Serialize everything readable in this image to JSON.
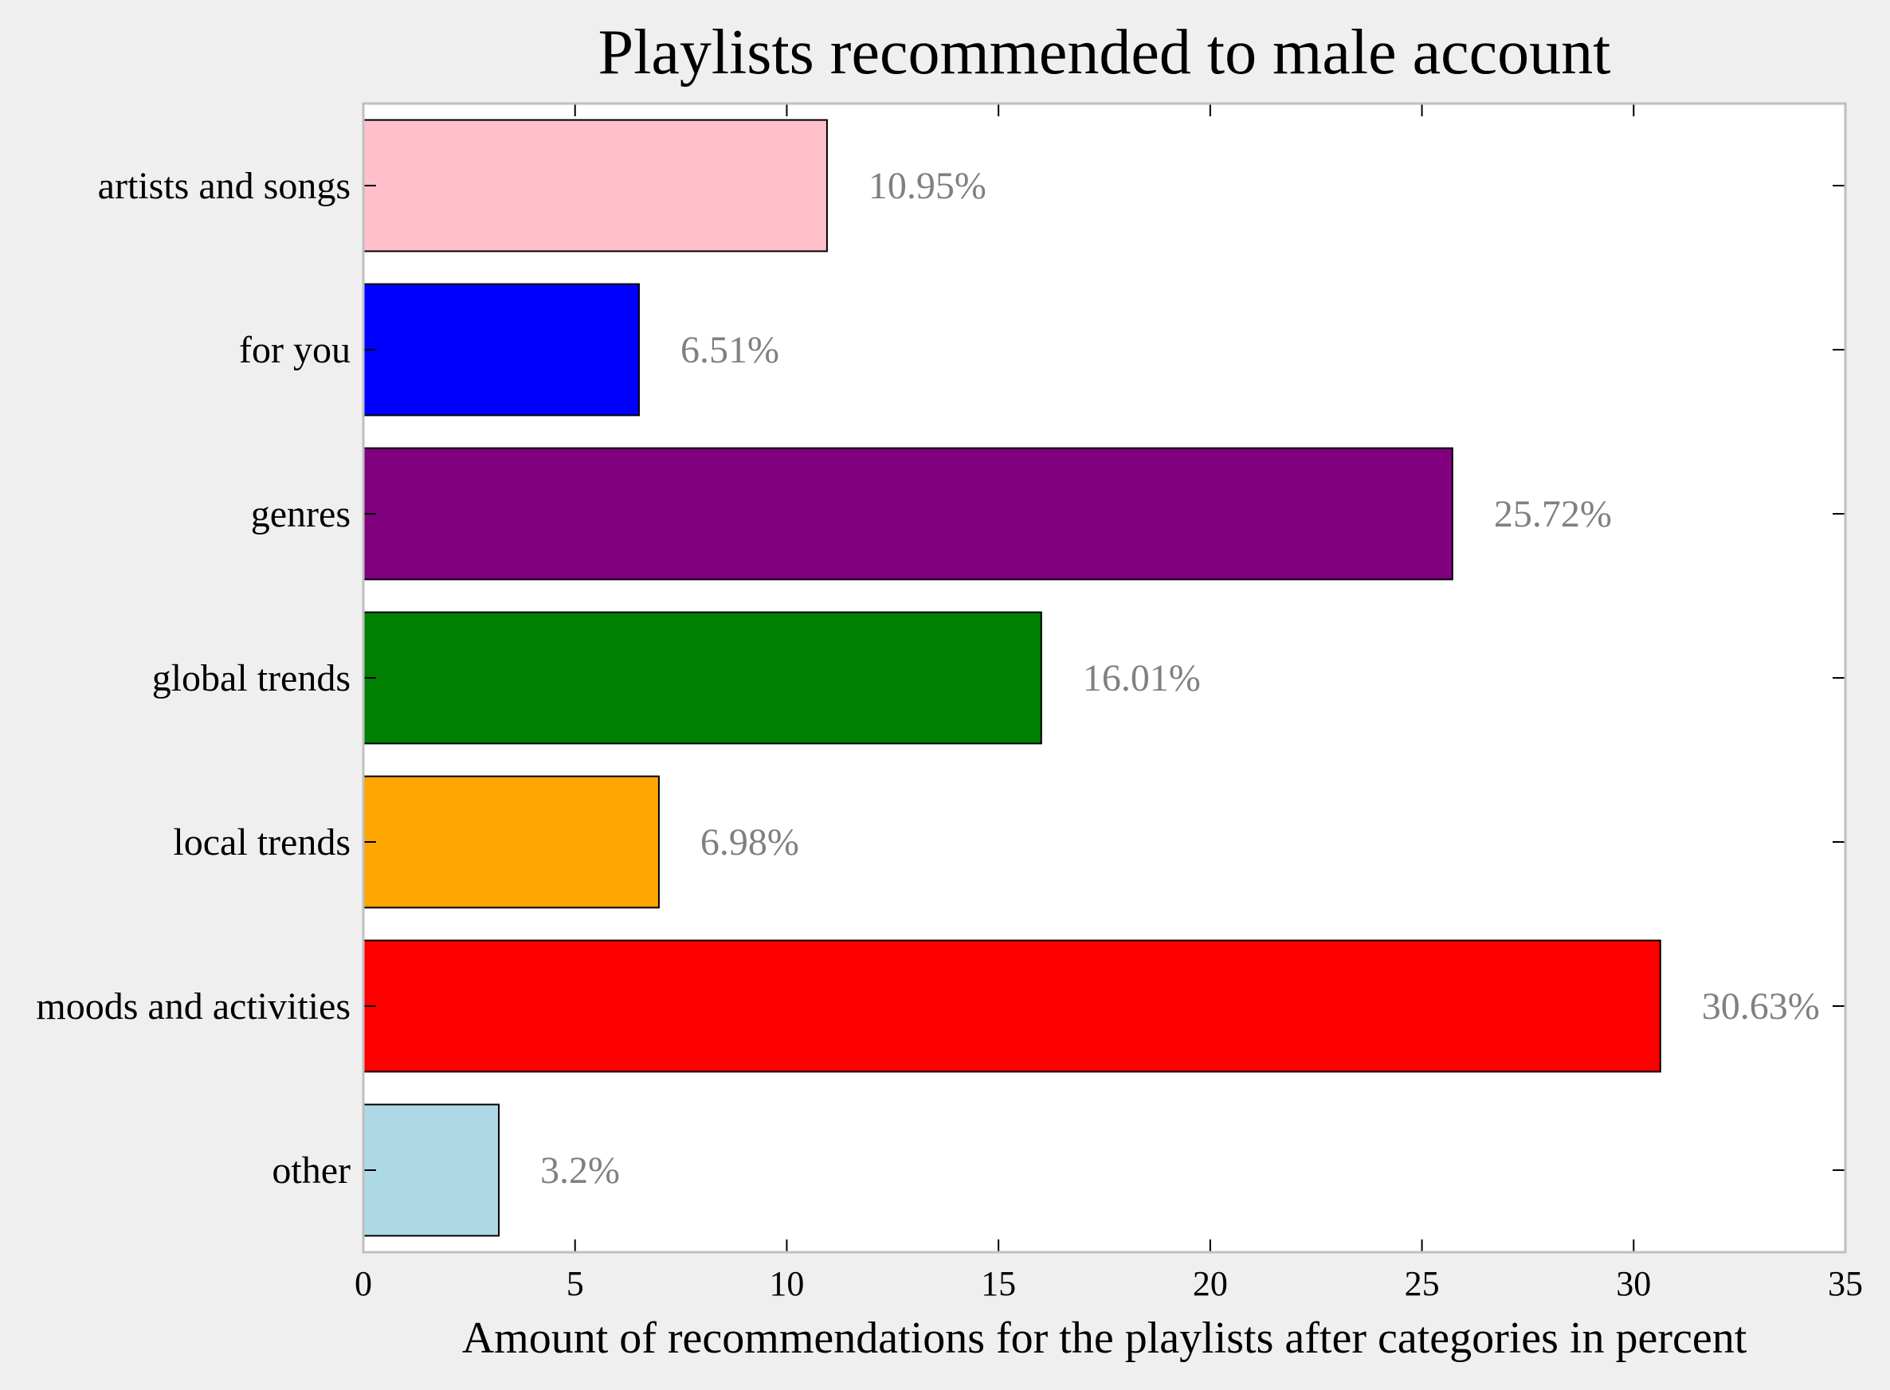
{
  "chart_data": {
    "type": "bar",
    "orientation": "horizontal",
    "title": "Playlists recommended to male account",
    "xlabel": "Amount of recommendations for the playlists after categories in percent",
    "ylabel": "",
    "categories": [
      "artists and songs",
      "for you",
      "genres",
      "global trends",
      "local trends",
      "moods and activities",
      "other"
    ],
    "values": [
      10.95,
      6.51,
      25.72,
      16.01,
      6.98,
      30.63,
      3.2
    ],
    "value_labels": [
      "10.95%",
      "6.51%",
      "25.72%",
      "16.01%",
      "6.98%",
      "30.63%",
      "3.2%"
    ],
    "colors": [
      "#ffc0cb",
      "#0000ff",
      "#800080",
      "#008000",
      "#ffa500",
      "#ff0000",
      "#add8e6"
    ],
    "xlim": [
      0,
      35
    ],
    "xticks": [
      0,
      5,
      10,
      15,
      20,
      25,
      30,
      35
    ],
    "xtick_labels": [
      "0",
      "5",
      "10",
      "15",
      "20",
      "25",
      "30",
      "35"
    ],
    "grid": false,
    "legend": "none"
  }
}
